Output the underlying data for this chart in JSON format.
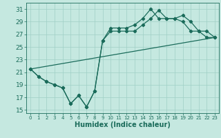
{
  "xlabel": "Humidex (Indice chaleur)",
  "bg_color": "#c5e8e0",
  "grid_color": "#9fcfc5",
  "line_color": "#1a6b5a",
  "xlim": [
    -0.5,
    23.5
  ],
  "ylim": [
    14.5,
    32
  ],
  "xticks": [
    0,
    1,
    2,
    3,
    4,
    5,
    6,
    7,
    8,
    9,
    10,
    11,
    12,
    13,
    14,
    15,
    16,
    17,
    18,
    19,
    20,
    21,
    22,
    23
  ],
  "yticks": [
    15,
    17,
    19,
    21,
    23,
    25,
    27,
    29,
    31
  ],
  "line1_x": [
    0,
    1,
    2,
    3,
    4,
    5,
    6,
    7,
    8,
    9,
    10,
    11,
    12,
    13,
    14,
    15,
    16,
    17,
    18,
    19,
    20,
    21,
    22,
    23
  ],
  "line1_y": [
    21.5,
    20.3,
    19.5,
    19.0,
    18.5,
    16.0,
    17.3,
    15.5,
    18.0,
    26.0,
    28.0,
    28.0,
    28.0,
    28.5,
    29.5,
    31.0,
    29.5,
    29.5,
    29.5,
    29.0,
    27.5,
    27.5,
    26.5,
    26.5
  ],
  "line2_x": [
    0,
    1,
    2,
    3,
    4,
    5,
    6,
    7,
    8,
    9,
    10,
    11,
    12,
    13,
    14,
    15,
    16,
    17,
    18,
    19,
    20,
    21,
    22,
    23
  ],
  "line2_y": [
    21.5,
    20.3,
    19.5,
    19.0,
    18.5,
    16.0,
    17.3,
    15.5,
    18.0,
    26.0,
    27.5,
    27.5,
    27.5,
    27.5,
    28.5,
    29.5,
    30.8,
    29.5,
    29.5,
    30.0,
    29.0,
    27.5,
    27.5,
    26.5
  ],
  "line3_x": [
    0,
    23
  ],
  "line3_y": [
    21.5,
    26.5
  ],
  "marker": "D",
  "marker_size": 2.2,
  "line_width": 0.9,
  "xlabel_fontsize": 7,
  "xtick_fontsize": 5.0,
  "ytick_fontsize": 6.5
}
